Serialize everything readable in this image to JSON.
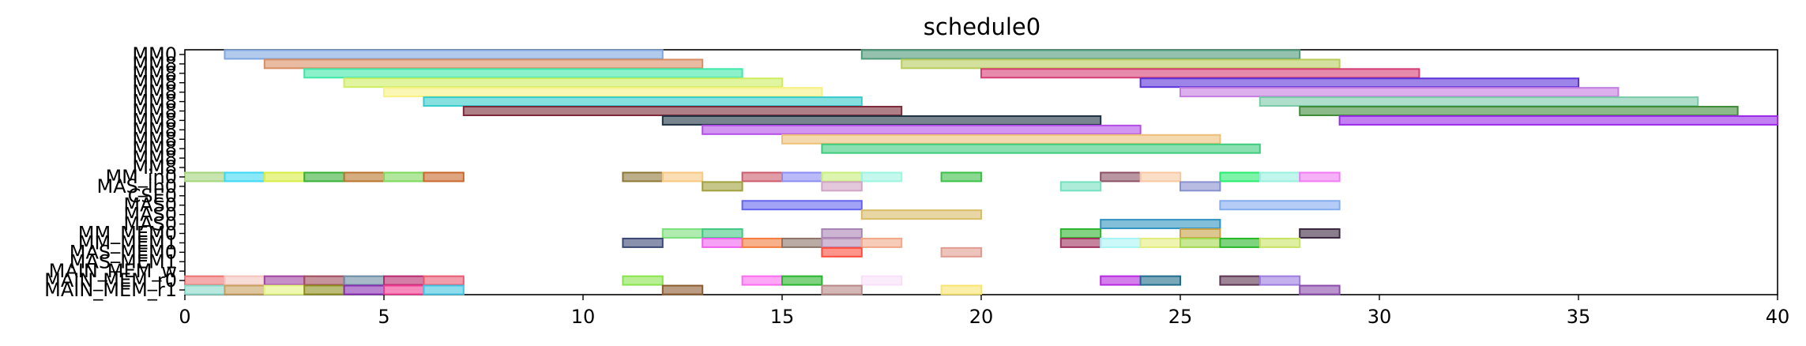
{
  "chart_data": {
    "type": "gantt",
    "title": "schedule0",
    "xlim": [
      0,
      40
    ],
    "x_ticks": [
      "0",
      "5",
      "10",
      "15",
      "20",
      "25",
      "30",
      "35",
      "40"
    ],
    "rows": [
      "MM0",
      "MM1",
      "MM2",
      "MM3",
      "MM4",
      "MM5",
      "MM6",
      "MM7",
      "MM8",
      "MM9",
      "MM10",
      "MM11",
      "MM12",
      "MM_in0",
      "MAS_in0",
      "CSE0",
      "MAS1",
      "MAS2",
      "MAS3",
      "MM_MEM0",
      "MM_MEM1",
      "MAS_MEM0",
      "MAS_MEM1",
      "MAIN_MEM_w",
      "MAIN_MEM_r0",
      "MAIN_MEM_r1"
    ],
    "y_labels": [
      "MM0",
      "MM8",
      "MM8",
      "MM8",
      "MM8",
      "MM8",
      "MM8",
      "MM8",
      "MM8",
      "MM8",
      "MM8",
      "MM8",
      "MM8",
      "MM_in0",
      "MAS_in0",
      "CSE0",
      "MAS0",
      "MAS0",
      "MAS0",
      "MM_MEM0",
      "MM_MEM1",
      "MAS_MEM0",
      "MAS_MEM1",
      "MAIN_MEM_w",
      "MAIN_MEM_r0",
      "MAIN_MEM_r1"
    ],
    "tasks": [
      {
        "row": 0,
        "start": 1,
        "end": 12,
        "color": "#7fa6e0"
      },
      {
        "row": 0,
        "start": 17,
        "end": 28,
        "color": "#4f9a78"
      },
      {
        "row": 1,
        "start": 2,
        "end": 13,
        "color": "#d88e64"
      },
      {
        "row": 1,
        "start": 18,
        "end": 29,
        "color": "#b7cc5c"
      },
      {
        "row": 2,
        "start": 3,
        "end": 14,
        "color": "#3ee8a8"
      },
      {
        "row": 2,
        "start": 20,
        "end": 31,
        "color": "#d63d73"
      },
      {
        "row": 3,
        "start": 4,
        "end": 15,
        "color": "#cdee62"
      },
      {
        "row": 3,
        "start": 24,
        "end": 35,
        "color": "#5a32d8"
      },
      {
        "row": 4,
        "start": 5,
        "end": 16,
        "color": "#f7f082"
      },
      {
        "row": 4,
        "start": 25,
        "end": 36,
        "color": "#c47ce0"
      },
      {
        "row": 5,
        "start": 6,
        "end": 17,
        "color": "#36cccc"
      },
      {
        "row": 5,
        "start": 27,
        "end": 38,
        "color": "#7acaa8"
      },
      {
        "row": 6,
        "start": 7,
        "end": 18,
        "color": "#7a2a38"
      },
      {
        "row": 6,
        "start": 28,
        "end": 39,
        "color": "#3f8c38"
      },
      {
        "row": 7,
        "start": 12,
        "end": 23,
        "color": "#1e3242"
      },
      {
        "row": 7,
        "start": 29,
        "end": 40,
        "color": "#9a2ae8"
      },
      {
        "row": 8,
        "start": 13,
        "end": 24,
        "color": "#b44ee8"
      },
      {
        "row": 9,
        "start": 15,
        "end": 26,
        "color": "#eebf78"
      },
      {
        "row": 10,
        "start": 16,
        "end": 27,
        "color": "#3ccc7c"
      },
      {
        "row": 13,
        "start": 0,
        "end": 1,
        "color": "#a4d47c"
      },
      {
        "row": 13,
        "start": 1,
        "end": 2,
        "color": "#3cd8f4"
      },
      {
        "row": 13,
        "start": 2,
        "end": 3,
        "color": "#d8ee44"
      },
      {
        "row": 13,
        "start": 3,
        "end": 4,
        "color": "#38b038"
      },
      {
        "row": 13,
        "start": 4,
        "end": 5,
        "color": "#b8742c"
      },
      {
        "row": 13,
        "start": 5,
        "end": 6,
        "color": "#7ed85c"
      },
      {
        "row": 13,
        "start": 6,
        "end": 7,
        "color": "#c8682c"
      },
      {
        "row": 13,
        "start": 11,
        "end": 12,
        "color": "#8e7838"
      },
      {
        "row": 13,
        "start": 12,
        "end": 13,
        "color": "#f8c880"
      },
      {
        "row": 13,
        "start": 14,
        "end": 15,
        "color": "#cc5c6c"
      },
      {
        "row": 13,
        "start": 15,
        "end": 16,
        "color": "#8c8cf4"
      },
      {
        "row": 13,
        "start": 16,
        "end": 17,
        "color": "#c8ee7c"
      },
      {
        "row": 13,
        "start": 17,
        "end": 18,
        "color": "#9cf4e0"
      },
      {
        "row": 13,
        "start": 19,
        "end": 20,
        "color": "#3cc048"
      },
      {
        "row": 13,
        "start": 23,
        "end": 24,
        "color": "#8c5064"
      },
      {
        "row": 13,
        "start": 24,
        "end": 25,
        "color": "#f8c8a0"
      },
      {
        "row": 13,
        "start": 26,
        "end": 27,
        "color": "#28ec70"
      },
      {
        "row": 13,
        "start": 27,
        "end": 28,
        "color": "#98f0e0"
      },
      {
        "row": 13,
        "start": 28,
        "end": 29,
        "color": "#f07cf4"
      },
      {
        "row": 14,
        "start": 13,
        "end": 14,
        "color": "#a0a03c"
      },
      {
        "row": 14,
        "start": 16,
        "end": 17,
        "color": "#d0a4c4"
      },
      {
        "row": 14,
        "start": 22,
        "end": 23,
        "color": "#74e0c0"
      },
      {
        "row": 14,
        "start": 25,
        "end": 26,
        "color": "#8890d0"
      },
      {
        "row": 16,
        "start": 14,
        "end": 17,
        "color": "#6464f0"
      },
      {
        "row": 16,
        "start": 26,
        "end": 29,
        "color": "#84acf0"
      },
      {
        "row": 17,
        "start": 17,
        "end": 20,
        "color": "#d8bc68"
      },
      {
        "row": 18,
        "start": 23,
        "end": 26,
        "color": "#3094c0"
      },
      {
        "row": 19,
        "start": 12,
        "end": 13,
        "color": "#7ce07c"
      },
      {
        "row": 19,
        "start": 13,
        "end": 14,
        "color": "#44c884"
      },
      {
        "row": 19,
        "start": 16,
        "end": 17,
        "color": "#a884b4"
      },
      {
        "row": 19,
        "start": 22,
        "end": 23,
        "color": "#30b430"
      },
      {
        "row": 19,
        "start": 25,
        "end": 26,
        "color": "#c8a048"
      },
      {
        "row": 19,
        "start": 28,
        "end": 29,
        "color": "#3c2840"
      },
      {
        "row": 20,
        "start": 11,
        "end": 12,
        "color": "#3c4874"
      },
      {
        "row": 20,
        "start": 13,
        "end": 14,
        "color": "#f060f0"
      },
      {
        "row": 20,
        "start": 14,
        "end": 15,
        "color": "#f47c3c"
      },
      {
        "row": 20,
        "start": 15,
        "end": 16,
        "color": "#8c7468"
      },
      {
        "row": 20,
        "start": 16,
        "end": 17,
        "color": "#b48cb8"
      },
      {
        "row": 20,
        "start": 17,
        "end": 18,
        "color": "#f0a888"
      },
      {
        "row": 20,
        "start": 22,
        "end": 23,
        "color": "#a0305c"
      },
      {
        "row": 20,
        "start": 23,
        "end": 24,
        "color": "#a8f4f4"
      },
      {
        "row": 20,
        "start": 24,
        "end": 25,
        "color": "#e4ec7c"
      },
      {
        "row": 20,
        "start": 25,
        "end": 26,
        "color": "#a4d850"
      },
      {
        "row": 20,
        "start": 26,
        "end": 27,
        "color": "#28b828"
      },
      {
        "row": 20,
        "start": 27,
        "end": 28,
        "color": "#c8e464"
      },
      {
        "row": 21,
        "start": 16,
        "end": 17,
        "color": "#ff4c3c"
      },
      {
        "row": 21,
        "start": 19,
        "end": 20,
        "color": "#e09c90"
      },
      {
        "row": 24,
        "start": 0,
        "end": 1,
        "color": "#ee7474"
      },
      {
        "row": 24,
        "start": 1,
        "end": 2,
        "color": "#f4c4bc"
      },
      {
        "row": 24,
        "start": 2,
        "end": 3,
        "color": "#a044a4"
      },
      {
        "row": 24,
        "start": 3,
        "end": 4,
        "color": "#a04c5c"
      },
      {
        "row": 24,
        "start": 4,
        "end": 5,
        "color": "#6c8ca4"
      },
      {
        "row": 24,
        "start": 5,
        "end": 6,
        "color": "#b8286c"
      },
      {
        "row": 24,
        "start": 6,
        "end": 7,
        "color": "#e85c74"
      },
      {
        "row": 24,
        "start": 11,
        "end": 12,
        "color": "#88e44c"
      },
      {
        "row": 24,
        "start": 14,
        "end": 15,
        "color": "#fc6cf0"
      },
      {
        "row": 24,
        "start": 15,
        "end": 16,
        "color": "#28b42c"
      },
      {
        "row": 24,
        "start": 17,
        "end": 18,
        "color": "#f8e0f8"
      },
      {
        "row": 24,
        "start": 23,
        "end": 24,
        "color": "#b828e0"
      },
      {
        "row": 24,
        "start": 24,
        "end": 25,
        "color": "#206c8c"
      },
      {
        "row": 24,
        "start": 26,
        "end": 27,
        "color": "#5c3450"
      },
      {
        "row": 24,
        "start": 27,
        "end": 28,
        "color": "#9c7ce0"
      },
      {
        "row": 25,
        "start": 0,
        "end": 1,
        "color": "#88d8c8"
      },
      {
        "row": 25,
        "start": 1,
        "end": 2,
        "color": "#c8a060"
      },
      {
        "row": 25,
        "start": 2,
        "end": 3,
        "color": "#e4f480"
      },
      {
        "row": 25,
        "start": 3,
        "end": 4,
        "color": "#909020"
      },
      {
        "row": 25,
        "start": 4,
        "end": 5,
        "color": "#8830b0"
      },
      {
        "row": 25,
        "start": 5,
        "end": 6,
        "color": "#f03c90"
      },
      {
        "row": 25,
        "start": 6,
        "end": 7,
        "color": "#44c4e0"
      },
      {
        "row": 25,
        "start": 12,
        "end": 13,
        "color": "#8c5c30"
      },
      {
        "row": 25,
        "start": 16,
        "end": 17,
        "color": "#b88888"
      },
      {
        "row": 25,
        "start": 19,
        "end": 20,
        "color": "#f8e470"
      },
      {
        "row": 25,
        "start": 28,
        "end": 29,
        "color": "#8c4cac"
      }
    ]
  }
}
